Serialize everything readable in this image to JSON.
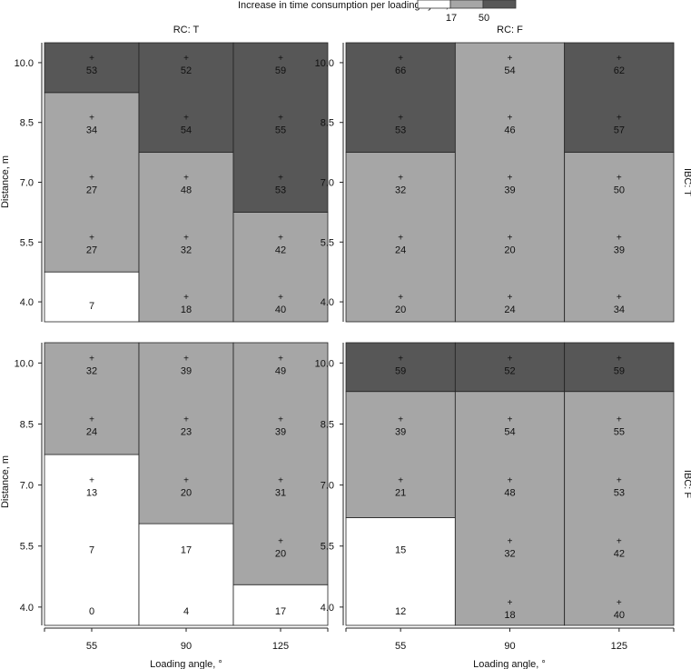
{
  "legend": {
    "title": "Increase in time consumption per loading cycle, %",
    "breaks": [
      "17",
      "50"
    ],
    "colors": [
      "#ffffff",
      "#a6a6a6",
      "#575757"
    ]
  },
  "chart_data": {
    "type": "heatmap",
    "xlabel": "Loading angle, °",
    "ylabel": "Distance, m",
    "categories": [
      "55",
      "90",
      "125"
    ],
    "y_ticks": [
      "4.0",
      "5.5",
      "7.0",
      "8.5",
      "10.0"
    ],
    "panels": [
      {
        "col_label": "RC: T",
        "row_label": "",
        "cells": [
          {
            "x": "55",
            "zones": [
              {
                "from": 4.0,
                "to": 4.75,
                "level": 0
              },
              {
                "from": 4.75,
                "to": 9.25,
                "level": 1
              },
              {
                "from": 9.25,
                "to": 10.0,
                "level": 2
              }
            ],
            "points": [
              {
                "y": 4.0,
                "value": "7",
                "marker": false
              },
              {
                "y": 5.5,
                "value": "27",
                "marker": true
              },
              {
                "y": 7.0,
                "value": "27",
                "marker": true
              },
              {
                "y": 8.5,
                "value": "34",
                "marker": true
              },
              {
                "y": 10.0,
                "value": "53",
                "marker": true
              }
            ]
          },
          {
            "x": "90",
            "zones": [
              {
                "from": 4.0,
                "to": 7.75,
                "level": 1
              },
              {
                "from": 7.75,
                "to": 10.0,
                "level": 2
              }
            ],
            "points": [
              {
                "y": 4.0,
                "value": "18",
                "marker": true
              },
              {
                "y": 5.5,
                "value": "32",
                "marker": true
              },
              {
                "y": 7.0,
                "value": "48",
                "marker": true
              },
              {
                "y": 8.5,
                "value": "54",
                "marker": true
              },
              {
                "y": 10.0,
                "value": "52",
                "marker": true
              }
            ]
          },
          {
            "x": "125",
            "zones": [
              {
                "from": 4.0,
                "to": 6.25,
                "level": 1
              },
              {
                "from": 6.25,
                "to": 10.0,
                "level": 2
              }
            ],
            "points": [
              {
                "y": 4.0,
                "value": "40",
                "marker": true
              },
              {
                "y": 5.5,
                "value": "42",
                "marker": true
              },
              {
                "y": 7.0,
                "value": "53",
                "marker": true
              },
              {
                "y": 8.5,
                "value": "55",
                "marker": true
              },
              {
                "y": 10.0,
                "value": "59",
                "marker": true
              }
            ]
          }
        ]
      },
      {
        "col_label": "RC: F",
        "row_label": "IBC: T",
        "cells": [
          {
            "x": "55",
            "zones": [
              {
                "from": 4.0,
                "to": 7.75,
                "level": 1
              },
              {
                "from": 7.75,
                "to": 10.0,
                "level": 2
              }
            ],
            "points": [
              {
                "y": 4.0,
                "value": "20",
                "marker": true
              },
              {
                "y": 5.5,
                "value": "24",
                "marker": true
              },
              {
                "y": 7.0,
                "value": "32",
                "marker": true
              },
              {
                "y": 8.5,
                "value": "53",
                "marker": true
              },
              {
                "y": 10.0,
                "value": "66",
                "marker": true
              }
            ]
          },
          {
            "x": "90",
            "zones": [
              {
                "from": 4.0,
                "to": 10.0,
                "level": 1
              }
            ],
            "points": [
              {
                "y": 4.0,
                "value": "24",
                "marker": true
              },
              {
                "y": 5.5,
                "value": "20",
                "marker": true
              },
              {
                "y": 7.0,
                "value": "39",
                "marker": true
              },
              {
                "y": 8.5,
                "value": "46",
                "marker": true
              },
              {
                "y": 10.0,
                "value": "54",
                "marker": true
              }
            ]
          },
          {
            "x": "125",
            "zones": [
              {
                "from": 4.0,
                "to": 7.75,
                "level": 1
              },
              {
                "from": 7.75,
                "to": 10.0,
                "level": 2
              }
            ],
            "points": [
              {
                "y": 4.0,
                "value": "34",
                "marker": true
              },
              {
                "y": 5.5,
                "value": "39",
                "marker": true
              },
              {
                "y": 7.0,
                "value": "50",
                "marker": true
              },
              {
                "y": 8.5,
                "value": "57",
                "marker": true
              },
              {
                "y": 10.0,
                "value": "62",
                "marker": true
              }
            ]
          }
        ]
      },
      {
        "col_label": "",
        "row_label": "",
        "cells": [
          {
            "x": "55",
            "zones": [
              {
                "from": 4.0,
                "to": 7.75,
                "level": 0
              },
              {
                "from": 7.75,
                "to": 10.0,
                "level": 1
              }
            ],
            "points": [
              {
                "y": 4.0,
                "value": "0",
                "marker": false
              },
              {
                "y": 5.5,
                "value": "7",
                "marker": false
              },
              {
                "y": 7.0,
                "value": "13",
                "marker": true
              },
              {
                "y": 8.5,
                "value": "24",
                "marker": true
              },
              {
                "y": 10.0,
                "value": "32",
                "marker": true
              }
            ]
          },
          {
            "x": "90",
            "zones": [
              {
                "from": 4.0,
                "to": 6.05,
                "level": 0
              },
              {
                "from": 6.05,
                "to": 10.0,
                "level": 1
              }
            ],
            "points": [
              {
                "y": 4.0,
                "value": "4",
                "marker": false
              },
              {
                "y": 5.5,
                "value": "17",
                "marker": false
              },
              {
                "y": 7.0,
                "value": "20",
                "marker": true
              },
              {
                "y": 8.5,
                "value": "23",
                "marker": true
              },
              {
                "y": 10.0,
                "value": "39",
                "marker": true
              }
            ]
          },
          {
            "x": "125",
            "zones": [
              {
                "from": 4.0,
                "to": 4.55,
                "level": 0
              },
              {
                "from": 4.55,
                "to": 10.0,
                "level": 1
              }
            ],
            "points": [
              {
                "y": 4.0,
                "value": "17",
                "marker": false
              },
              {
                "y": 5.5,
                "value": "20",
                "marker": true
              },
              {
                "y": 7.0,
                "value": "31",
                "marker": true
              },
              {
                "y": 8.5,
                "value": "39",
                "marker": true
              },
              {
                "y": 10.0,
                "value": "49",
                "marker": true
              }
            ]
          }
        ]
      },
      {
        "col_label": "",
        "row_label": "IBC: F",
        "cells": [
          {
            "x": "55",
            "zones": [
              {
                "from": 4.0,
                "to": 6.2,
                "level": 0
              },
              {
                "from": 6.2,
                "to": 9.3,
                "level": 1
              },
              {
                "from": 9.3,
                "to": 10.0,
                "level": 2
              }
            ],
            "points": [
              {
                "y": 4.0,
                "value": "12",
                "marker": false
              },
              {
                "y": 5.5,
                "value": "15",
                "marker": false
              },
              {
                "y": 7.0,
                "value": "21",
                "marker": true
              },
              {
                "y": 8.5,
                "value": "39",
                "marker": true
              },
              {
                "y": 10.0,
                "value": "59",
                "marker": true
              }
            ]
          },
          {
            "x": "90",
            "zones": [
              {
                "from": 4.0,
                "to": 9.3,
                "level": 1
              },
              {
                "from": 9.3,
                "to": 10.0,
                "level": 2
              }
            ],
            "points": [
              {
                "y": 4.0,
                "value": "18",
                "marker": true
              },
              {
                "y": 5.5,
                "value": "32",
                "marker": true
              },
              {
                "y": 7.0,
                "value": "48",
                "marker": true
              },
              {
                "y": 8.5,
                "value": "54",
                "marker": true
              },
              {
                "y": 10.0,
                "value": "52",
                "marker": true
              }
            ]
          },
          {
            "x": "125",
            "zones": [
              {
                "from": 4.0,
                "to": 9.3,
                "level": 1
              },
              {
                "from": 9.3,
                "to": 10.0,
                "level": 2
              }
            ],
            "points": [
              {
                "y": 4.0,
                "value": "40",
                "marker": true
              },
              {
                "y": 5.5,
                "value": "42",
                "marker": true
              },
              {
                "y": 7.0,
                "value": "53",
                "marker": true
              },
              {
                "y": 8.5,
                "value": "55",
                "marker": true
              },
              {
                "y": 10.0,
                "value": "59",
                "marker": true
              }
            ]
          }
        ]
      }
    ]
  }
}
